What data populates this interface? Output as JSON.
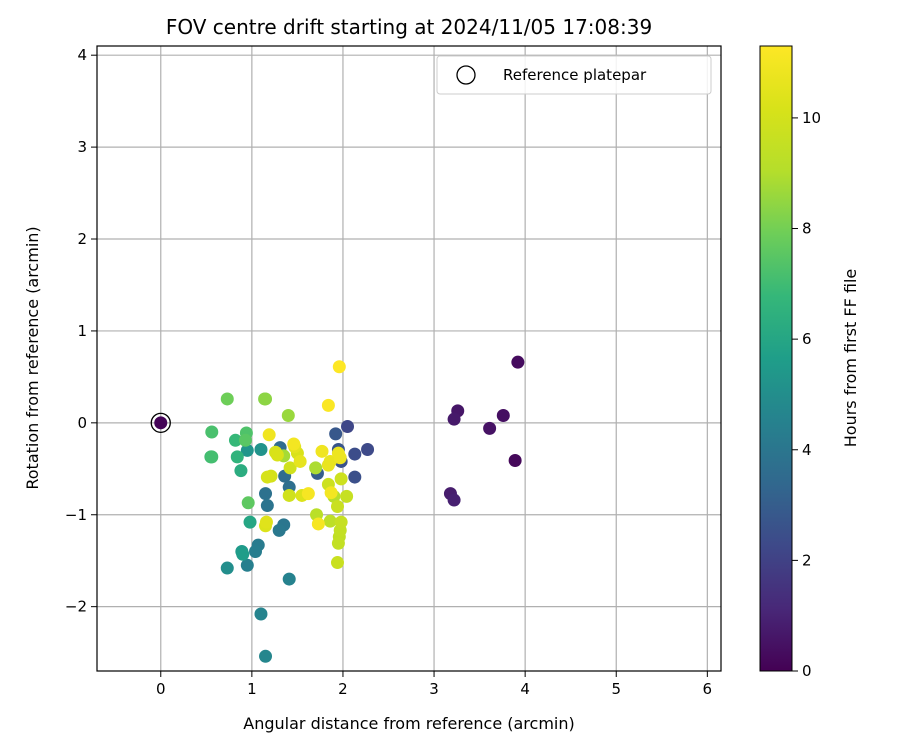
{
  "chart_data": {
    "type": "scatter",
    "title": "FOV centre drift starting at 2024/11/05 17:08:39",
    "xlabel": "Angular distance from reference (arcmin)",
    "ylabel": "Rotation from reference (arcmin)",
    "xlim": [
      -0.7,
      6.15
    ],
    "ylim": [
      -2.7,
      4.1
    ],
    "x_ticks": [
      0,
      1,
      2,
      3,
      4,
      5,
      6
    ],
    "y_ticks": [
      -2,
      -1,
      0,
      1,
      2,
      3,
      4
    ],
    "grid": true,
    "legend": {
      "placement": "top-right",
      "entries": [
        "Reference platepar"
      ]
    },
    "reference_point": {
      "x": 0,
      "y": 0
    },
    "colormap": "viridis",
    "colorbar": {
      "label": "Hours from first FF file",
      "range": [
        0,
        11.3
      ],
      "ticks": [
        0,
        2,
        4,
        6,
        8,
        10
      ]
    },
    "points": [
      {
        "x": 0.0,
        "y": 0.0,
        "h": 0.1
      },
      {
        "x": 3.92,
        "y": 0.66,
        "h": 0.3
      },
      {
        "x": 3.76,
        "y": 0.08,
        "h": 0.4
      },
      {
        "x": 3.89,
        "y": -0.41,
        "h": 0.2
      },
      {
        "x": 3.61,
        "y": -0.06,
        "h": 0.5
      },
      {
        "x": 3.26,
        "y": 0.13,
        "h": 0.6
      },
      {
        "x": 3.22,
        "y": 0.04,
        "h": 0.7
      },
      {
        "x": 3.18,
        "y": -0.77,
        "h": 0.8
      },
      {
        "x": 3.22,
        "y": -0.84,
        "h": 0.9
      },
      {
        "x": 2.05,
        "y": -0.04,
        "h": 2.2
      },
      {
        "x": 2.27,
        "y": -0.29,
        "h": 2.3
      },
      {
        "x": 2.13,
        "y": -0.34,
        "h": 2.4
      },
      {
        "x": 2.13,
        "y": -0.59,
        "h": 2.5
      },
      {
        "x": 1.98,
        "y": -0.42,
        "h": 2.6
      },
      {
        "x": 1.95,
        "y": -0.29,
        "h": 2.7
      },
      {
        "x": 1.92,
        "y": -0.12,
        "h": 2.8
      },
      {
        "x": 1.72,
        "y": -0.55,
        "h": 3.0
      },
      {
        "x": 1.31,
        "y": -0.27,
        "h": 3.5
      },
      {
        "x": 1.36,
        "y": -0.58,
        "h": 3.6
      },
      {
        "x": 1.41,
        "y": -0.7,
        "h": 3.7
      },
      {
        "x": 1.15,
        "y": -0.77,
        "h": 3.8
      },
      {
        "x": 1.17,
        "y": -0.9,
        "h": 3.9
      },
      {
        "x": 1.35,
        "y": -1.11,
        "h": 4.0
      },
      {
        "x": 1.3,
        "y": -1.17,
        "h": 4.1
      },
      {
        "x": 1.07,
        "y": -1.33,
        "h": 4.2
      },
      {
        "x": 1.04,
        "y": -1.4,
        "h": 4.3
      },
      {
        "x": 0.95,
        "y": -1.55,
        "h": 4.4
      },
      {
        "x": 1.41,
        "y": -1.7,
        "h": 4.5
      },
      {
        "x": 1.1,
        "y": -2.08,
        "h": 4.6
      },
      {
        "x": 1.15,
        "y": -2.54,
        "h": 4.7
      },
      {
        "x": 0.73,
        "y": -1.58,
        "h": 5.0
      },
      {
        "x": 1.1,
        "y": -0.29,
        "h": 5.2
      },
      {
        "x": 0.95,
        "y": -0.3,
        "h": 5.3
      },
      {
        "x": 0.89,
        "y": -1.4,
        "h": 5.5
      },
      {
        "x": 0.9,
        "y": -1.43,
        "h": 5.6
      },
      {
        "x": 0.98,
        "y": -1.08,
        "h": 6.0
      },
      {
        "x": 0.88,
        "y": -0.52,
        "h": 6.3
      },
      {
        "x": 0.84,
        "y": -0.37,
        "h": 6.6
      },
      {
        "x": 0.82,
        "y": -0.19,
        "h": 6.8
      },
      {
        "x": 0.55,
        "y": -0.37,
        "h": 7.0
      },
      {
        "x": 0.56,
        "y": -0.37,
        "h": 7.1
      },
      {
        "x": 0.56,
        "y": -0.1,
        "h": 7.2
      },
      {
        "x": 0.94,
        "y": -0.11,
        "h": 7.3
      },
      {
        "x": 0.93,
        "y": -0.19,
        "h": 7.5
      },
      {
        "x": 0.96,
        "y": -0.87,
        "h": 7.6
      },
      {
        "x": 0.73,
        "y": 0.26,
        "h": 7.9
      },
      {
        "x": 1.14,
        "y": 0.26,
        "h": 8.3
      },
      {
        "x": 1.15,
        "y": 0.26,
        "h": 8.4
      },
      {
        "x": 1.4,
        "y": 0.08,
        "h": 8.6
      },
      {
        "x": 1.35,
        "y": -0.36,
        "h": 8.8
      },
      {
        "x": 1.7,
        "y": -0.49,
        "h": 8.9
      },
      {
        "x": 1.9,
        "y": -0.8,
        "h": 9.1
      },
      {
        "x": 1.71,
        "y": -1.0,
        "h": 9.2
      },
      {
        "x": 1.86,
        "y": -1.07,
        "h": 9.3
      },
      {
        "x": 1.96,
        "y": -1.24,
        "h": 9.4
      },
      {
        "x": 1.95,
        "y": -1.31,
        "h": 9.5
      },
      {
        "x": 1.97,
        "y": -1.17,
        "h": 9.5
      },
      {
        "x": 1.98,
        "y": -1.08,
        "h": 9.6
      },
      {
        "x": 2.04,
        "y": -0.8,
        "h": 9.6
      },
      {
        "x": 1.94,
        "y": -0.91,
        "h": 9.7
      },
      {
        "x": 1.94,
        "y": -1.52,
        "h": 9.7
      },
      {
        "x": 1.98,
        "y": -0.61,
        "h": 9.8
      },
      {
        "x": 1.84,
        "y": -0.67,
        "h": 9.8
      },
      {
        "x": 1.41,
        "y": -0.79,
        "h": 9.9
      },
      {
        "x": 1.42,
        "y": -0.49,
        "h": 9.9
      },
      {
        "x": 1.21,
        "y": -0.58,
        "h": 10.0
      },
      {
        "x": 1.17,
        "y": -0.59,
        "h": 10.1
      },
      {
        "x": 1.26,
        "y": -0.32,
        "h": 10.1
      },
      {
        "x": 1.28,
        "y": -0.35,
        "h": 10.2
      },
      {
        "x": 1.5,
        "y": -0.33,
        "h": 10.2
      },
      {
        "x": 1.55,
        "y": -0.79,
        "h": 10.3
      },
      {
        "x": 1.15,
        "y": -1.12,
        "h": 10.3
      },
      {
        "x": 1.16,
        "y": -1.08,
        "h": 10.4
      },
      {
        "x": 1.47,
        "y": -0.26,
        "h": 10.5
      },
      {
        "x": 1.53,
        "y": -0.42,
        "h": 10.6
      },
      {
        "x": 1.86,
        "y": -0.42,
        "h": 10.7
      },
      {
        "x": 1.84,
        "y": -0.46,
        "h": 10.7
      },
      {
        "x": 1.97,
        "y": -0.38,
        "h": 10.8
      },
      {
        "x": 1.95,
        "y": -0.33,
        "h": 10.8
      },
      {
        "x": 1.77,
        "y": -0.31,
        "h": 10.9
      },
      {
        "x": 1.19,
        "y": -0.13,
        "h": 10.9
      },
      {
        "x": 1.46,
        "y": -0.23,
        "h": 11.0
      },
      {
        "x": 1.87,
        "y": -0.76,
        "h": 11.0
      },
      {
        "x": 1.62,
        "y": -0.77,
        "h": 11.1
      },
      {
        "x": 1.73,
        "y": -1.1,
        "h": 11.1
      },
      {
        "x": 1.84,
        "y": 0.19,
        "h": 11.2
      },
      {
        "x": 1.96,
        "y": 0.61,
        "h": 11.3
      }
    ]
  }
}
